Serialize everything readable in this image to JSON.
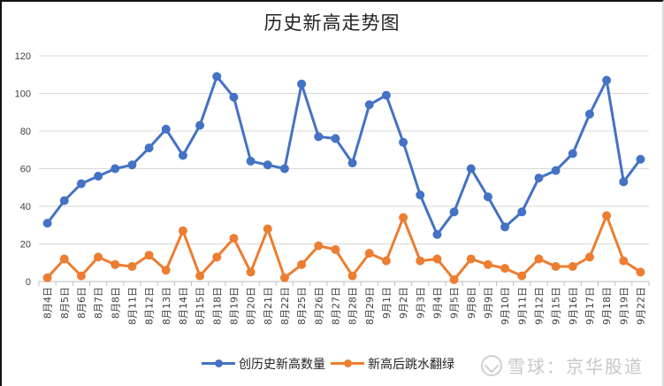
{
  "chart_data": {
    "type": "line",
    "title": "历史新高走势图",
    "xlabel": "",
    "ylabel": "",
    "ylim": [
      0,
      120
    ],
    "yticks": [
      0,
      20,
      40,
      60,
      80,
      100,
      120
    ],
    "grid": true,
    "legend_position": "bottom",
    "categories": [
      "8月4日",
      "8月5日",
      "8月6日",
      "8月7日",
      "8月8日",
      "8月11日",
      "8月12日",
      "8月13日",
      "8月14日",
      "8月15日",
      "8月18日",
      "8月19日",
      "8月20日",
      "8月21日",
      "8月22日",
      "8月25日",
      "8月26日",
      "8月27日",
      "8月28日",
      "8月29日",
      "9月1日",
      "9月2日",
      "9月3日",
      "9月4日",
      "9月5日",
      "9月8日",
      "9月9日",
      "9月10日",
      "9月11日",
      "9月12日",
      "9月15日",
      "9月16日",
      "9月17日",
      "9月18日",
      "9月19日",
      "9月22日"
    ],
    "series": [
      {
        "name": "创历史新高数量",
        "color": "#4472C4",
        "values": [
          31,
          43,
          52,
          56,
          60,
          62,
          71,
          81,
          67,
          83,
          109,
          98,
          64,
          62,
          60,
          105,
          77,
          76,
          63,
          94,
          99,
          74,
          46,
          25,
          37,
          60,
          45,
          29,
          37,
          55,
          59,
          68,
          89,
          107,
          53,
          65
        ]
      },
      {
        "name": "新高后跳水翻绿",
        "color": "#ED7D31",
        "values": [
          2,
          12,
          3,
          13,
          9,
          8,
          14,
          6,
          27,
          3,
          13,
          23,
          5,
          28,
          2,
          9,
          19,
          17,
          3,
          15,
          11,
          34,
          11,
          12,
          1,
          12,
          9,
          7,
          3,
          12,
          8,
          8,
          13,
          35,
          11,
          5
        ]
      }
    ]
  },
  "watermark": {
    "text": "雪球：京华股道"
  }
}
